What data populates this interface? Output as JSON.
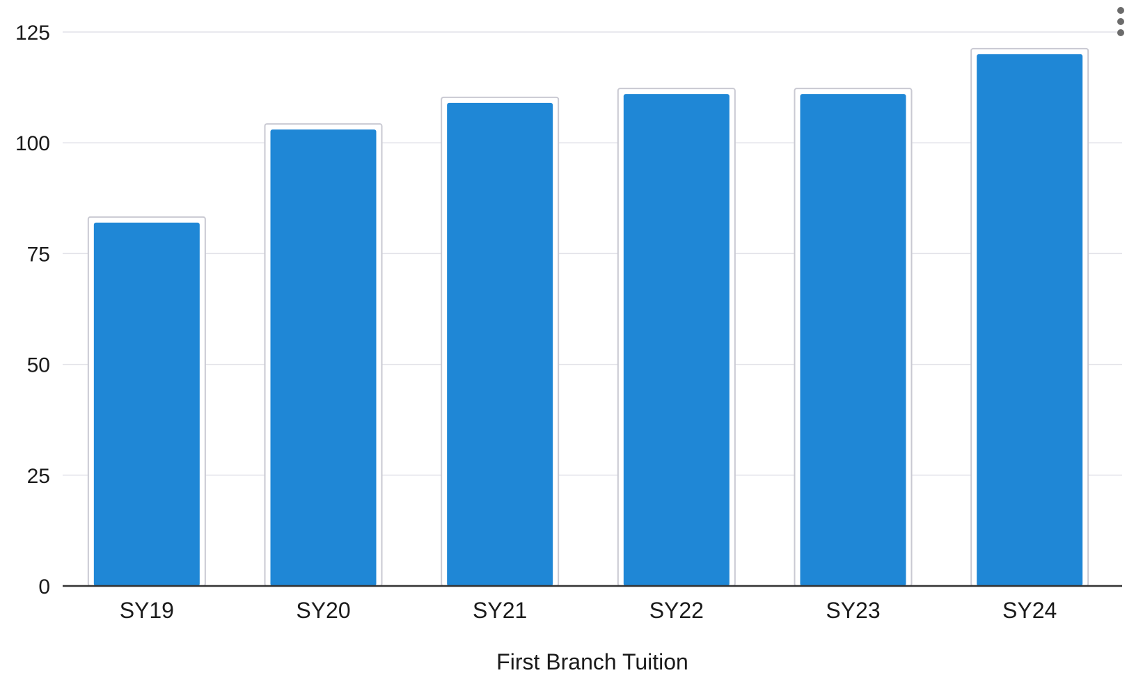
{
  "chart_data": {
    "type": "bar",
    "categories": [
      "SY19",
      "SY20",
      "SY21",
      "SY22",
      "SY23",
      "SY24"
    ],
    "values": [
      82,
      103,
      109,
      111,
      111,
      120
    ],
    "title": "",
    "xlabel": "First Branch Tuition",
    "ylabel": "",
    "ylim": [
      0,
      125
    ],
    "yticks": [
      0,
      25,
      50,
      75,
      100,
      125
    ],
    "grid": true,
    "legend": "none",
    "bar_color": "#1f87d6",
    "bar_outline_color": "#ffffff"
  },
  "menu": {
    "icon": "vertical-ellipsis-icon"
  }
}
